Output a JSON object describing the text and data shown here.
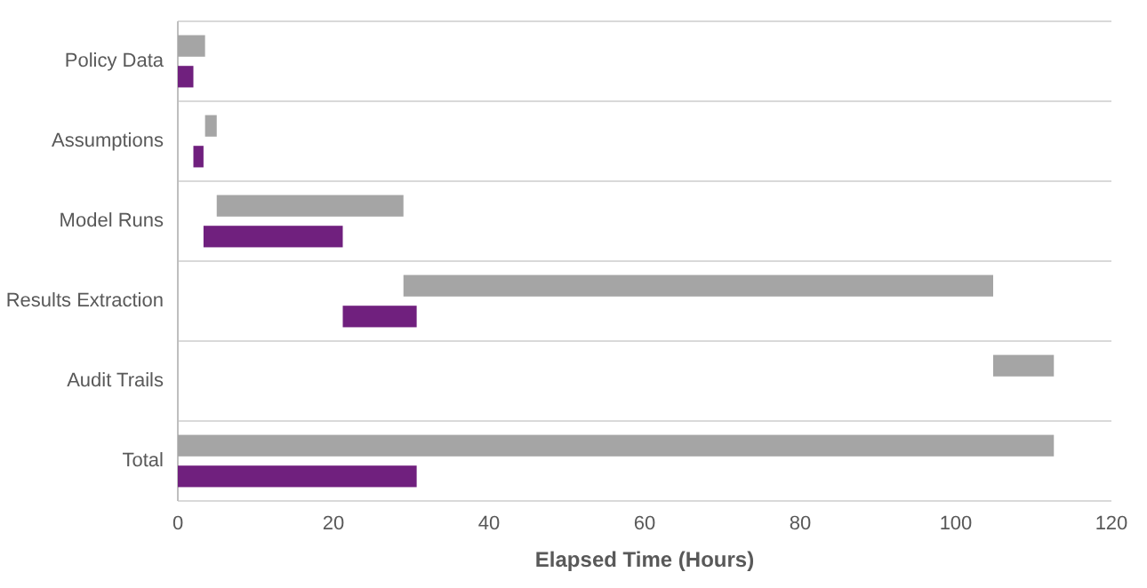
{
  "chart_data": {
    "type": "bar",
    "orientation": "horizontal",
    "xlabel": "Elapsed Time (Hours)",
    "categories": [
      "Policy Data",
      "Assumptions",
      "Model Runs",
      "Results Extraction",
      "Audit Trails",
      "Total"
    ],
    "series": [
      {
        "color": "#a5a5a5",
        "base": [
          0,
          3.5,
          5,
          29,
          104.8,
          0
        ],
        "values": [
          3.5,
          1.5,
          24,
          75.8,
          7.8,
          112.6
        ]
      },
      {
        "color": "#70207e",
        "base": [
          0,
          2,
          3.3,
          21.2,
          null,
          0
        ],
        "values": [
          2,
          1.3,
          17.9,
          9.5,
          null,
          30.7
        ]
      }
    ],
    "xlim": [
      0,
      120
    ],
    "xticks": [
      0,
      20,
      40,
      60,
      80,
      100,
      120
    ],
    "grid": "y"
  }
}
